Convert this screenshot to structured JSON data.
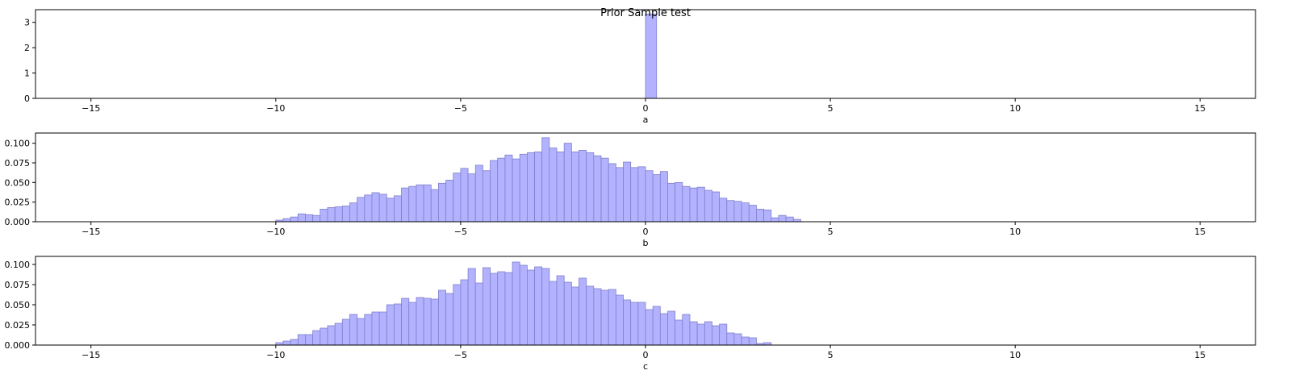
{
  "figure": {
    "title": "Prior Sample test"
  },
  "style": {
    "bar_fill": "#b2b2ff",
    "bar_edge": "#7f7fcc"
  },
  "chart_data": [
    {
      "type": "bar",
      "subtype": "histogram",
      "xlabel": "a",
      "ylabel": "",
      "xlim": [
        -16.5,
        16.5
      ],
      "ylim": [
        0,
        3.5
      ],
      "xticks": [
        -15,
        -10,
        -5,
        0,
        5,
        10,
        15
      ],
      "xtick_labels": [
        "−15",
        "−10",
        "−5",
        "0",
        "5",
        "10",
        "15"
      ],
      "yticks": [
        0,
        1,
        2,
        3
      ],
      "ytick_labels": [
        "0",
        "1",
        "2",
        "3"
      ],
      "bin_start": 0.0,
      "bin_width": 0.3,
      "values": [
        3.33
      ]
    },
    {
      "type": "bar",
      "subtype": "histogram",
      "xlabel": "b",
      "ylabel": "",
      "xlim": [
        -16.5,
        16.5
      ],
      "ylim": [
        0,
        0.113
      ],
      "xticks": [
        -15,
        -10,
        -5,
        0,
        5,
        10,
        15
      ],
      "xtick_labels": [
        "−15",
        "−10",
        "−5",
        "0",
        "5",
        "10",
        "15"
      ],
      "yticks": [
        0,
        0.025,
        0.05,
        0.075,
        0.1
      ],
      "ytick_labels": [
        "0.000",
        "0.025",
        "0.050",
        "0.075",
        "0.100"
      ],
      "bin_start": -10.0,
      "bin_width": 0.2,
      "values": [
        0.002,
        0.004,
        0.006,
        0.01,
        0.009,
        0.008,
        0.016,
        0.018,
        0.019,
        0.02,
        0.024,
        0.031,
        0.034,
        0.037,
        0.035,
        0.03,
        0.033,
        0.043,
        0.045,
        0.047,
        0.047,
        0.041,
        0.049,
        0.053,
        0.062,
        0.068,
        0.061,
        0.072,
        0.065,
        0.078,
        0.081,
        0.085,
        0.08,
        0.086,
        0.088,
        0.089,
        0.107,
        0.094,
        0.089,
        0.1,
        0.089,
        0.091,
        0.088,
        0.084,
        0.081,
        0.074,
        0.069,
        0.076,
        0.069,
        0.07,
        0.065,
        0.06,
        0.064,
        0.049,
        0.05,
        0.045,
        0.043,
        0.044,
        0.04,
        0.038,
        0.03,
        0.027,
        0.026,
        0.024,
        0.021,
        0.016,
        0.015,
        0.005,
        0.008,
        0.006,
        0.003
      ]
    },
    {
      "type": "bar",
      "subtype": "histogram",
      "xlabel": "c",
      "ylabel": "",
      "xlim": [
        -16.5,
        16.5
      ],
      "ylim": [
        0,
        0.11
      ],
      "xticks": [
        -15,
        -10,
        -5,
        0,
        5,
        10,
        15
      ],
      "xtick_labels": [
        "−15",
        "−10",
        "−5",
        "0",
        "5",
        "10",
        "15"
      ],
      "yticks": [
        0,
        0.025,
        0.05,
        0.075,
        0.1
      ],
      "ytick_labels": [
        "0.000",
        "0.025",
        "0.050",
        "0.075",
        "0.100"
      ],
      "bin_start": -10.0,
      "bin_width": 0.2,
      "values": [
        0.003,
        0.005,
        0.007,
        0.013,
        0.013,
        0.018,
        0.021,
        0.024,
        0.027,
        0.032,
        0.038,
        0.033,
        0.038,
        0.041,
        0.041,
        0.05,
        0.051,
        0.058,
        0.053,
        0.059,
        0.058,
        0.057,
        0.068,
        0.064,
        0.075,
        0.081,
        0.095,
        0.077,
        0.096,
        0.089,
        0.091,
        0.09,
        0.103,
        0.099,
        0.093,
        0.097,
        0.095,
        0.079,
        0.086,
        0.078,
        0.072,
        0.083,
        0.073,
        0.07,
        0.068,
        0.069,
        0.062,
        0.056,
        0.053,
        0.053,
        0.044,
        0.048,
        0.039,
        0.042,
        0.031,
        0.038,
        0.029,
        0.026,
        0.029,
        0.024,
        0.026,
        0.015,
        0.014,
        0.01,
        0.009,
        0.002,
        0.003
      ]
    }
  ]
}
